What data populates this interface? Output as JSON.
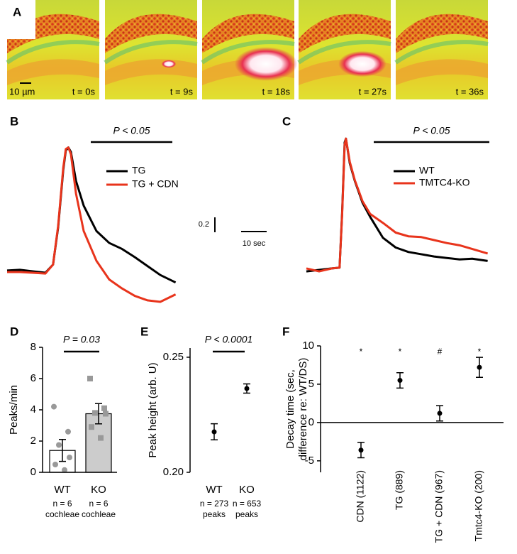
{
  "image_panel": {
    "panel_label": "A",
    "frames": [
      "t = 0s",
      "t = 9s",
      "t = 18s",
      "t = 27s",
      "t = 36s"
    ],
    "scale_bar_label": "10 µm"
  },
  "chart_data": [
    {
      "type": "line",
      "panel_label": "B",
      "annotation": "P < 0.05",
      "x": [
        0,
        5,
        10,
        15,
        18,
        20,
        22,
        23,
        24,
        25,
        27,
        30,
        35,
        40,
        45,
        50,
        55,
        60,
        66
      ],
      "series": [
        {
          "name": "TG",
          "color": "#000000",
          "values": [
            0.02,
            0.03,
            0.01,
            -0.01,
            0.1,
            0.6,
            1.37,
            1.63,
            1.67,
            1.61,
            1.22,
            0.89,
            0.55,
            0.39,
            0.31,
            0.2,
            0.08,
            -0.04,
            -0.14
          ]
        },
        {
          "name": "TG + CDN",
          "color": "#e8341c",
          "values": [
            0.0,
            0.0,
            -0.01,
            -0.02,
            0.1,
            0.62,
            1.4,
            1.65,
            1.67,
            1.58,
            1.05,
            0.55,
            0.15,
            -0.1,
            -0.22,
            -0.32,
            -0.38,
            -0.4,
            -0.3
          ]
        }
      ],
      "scale_bar": {
        "y": 0.2,
        "x": {
          "value": 10,
          "label": "10 sec"
        }
      }
    },
    {
      "type": "line",
      "panel_label": "C",
      "annotation": "P < 0.05",
      "x": [
        0,
        5,
        10,
        13,
        14,
        15,
        15.5,
        17,
        19,
        22,
        25,
        30,
        35,
        40,
        45,
        50,
        55,
        60,
        65,
        71
      ],
      "series": [
        {
          "name": "WT",
          "color": "#000000",
          "values": [
            -0.02,
            0,
            0.02,
            0.03,
            0.76,
            1.71,
            1.76,
            1.43,
            1.19,
            0.9,
            0.71,
            0.43,
            0.3,
            0.24,
            0.21,
            0.18,
            0.16,
            0.14,
            0.15,
            0.12
          ]
        },
        {
          "name": "TMTC4-KO",
          "color": "#e8341c",
          "values": [
            0.02,
            -0.02,
            0.02,
            0.03,
            0.74,
            1.68,
            1.76,
            1.45,
            1.2,
            0.92,
            0.75,
            0.63,
            0.5,
            0.45,
            0.44,
            0.4,
            0.36,
            0.33,
            0.28,
            0.22
          ]
        }
      ]
    },
    {
      "type": "bar",
      "panel_label": "D",
      "annotation": "P = 0.03",
      "ylabel": "Peaks/min",
      "categories": [
        "WT",
        "KO"
      ],
      "values": [
        1.4,
        3.75
      ],
      "errors": [
        0.7,
        0.65
      ],
      "colors": [
        "#ffffff",
        "#cccccc"
      ],
      "point_color": "#999999",
      "points": [
        [
          4.2,
          2.6,
          1.75,
          0.95,
          0.5,
          0.15
        ],
        [
          6.0,
          4.1,
          3.8,
          3.75,
          2.9,
          2.2
        ]
      ],
      "n_labels": [
        "n = 6",
        "n = 6"
      ],
      "unit_labels": [
        "cochleae",
        "cochleae"
      ],
      "ylim": [
        0,
        8
      ],
      "yticks": [
        0,
        2,
        4,
        6,
        8
      ]
    },
    {
      "type": "errorbar",
      "panel_label": "E",
      "annotation": "P < 0.0001",
      "ylabel": "Peak height (arb. U)",
      "categories": [
        "WT",
        "KO"
      ],
      "values": [
        0.2176,
        0.2364
      ],
      "errors": [
        0.0035,
        0.002
      ],
      "n_labels": [
        "n = 273",
        "n = 653"
      ],
      "unit_labels": [
        "peaks",
        "peaks"
      ],
      "ylim": [
        0.2,
        0.254
      ],
      "yticks": [
        {
          "value": 0.2,
          "label": "0.20"
        },
        0.25
      ]
    },
    {
      "type": "errorbar",
      "panel_label": "F",
      "ylabel": [
        "Decay time (sec,",
        "difference re: WT/DS)"
      ],
      "categories": [
        "CDN (1122)",
        "TG (889)",
        "TG + CDN (967)",
        "Tmtc4-KO (200)"
      ],
      "values": [
        -3.6,
        5.5,
        1.2,
        7.2
      ],
      "errors": [
        1.0,
        1.0,
        1.0,
        1.3
      ],
      "markers": [
        "*",
        "*",
        "#",
        "*"
      ],
      "ylim": [
        -6.5,
        10
      ],
      "yticks": [
        10,
        5,
        0,
        -5
      ],
      "zero_line": true
    }
  ]
}
